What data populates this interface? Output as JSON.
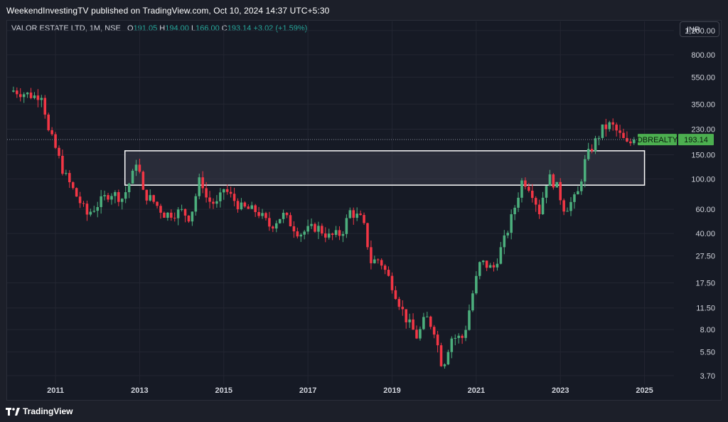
{
  "header": {
    "published_text": "WeekendInvestingTV published on TradingView.com, Oct 10, 2024 14:37 UTC+5:30"
  },
  "symbol": {
    "name": "VALOR ESTATE LTD, 1M, NSE",
    "open_label": "O",
    "open": "191.05",
    "high_label": "H",
    "high": "194.00",
    "low_label": "L",
    "low": "166.00",
    "close_label": "C",
    "close": "193.14",
    "change": "+3.02 (+1.59%)"
  },
  "currency_button": "INR",
  "footer": {
    "brand": "TradingView"
  },
  "colors": {
    "up": "#26a69a",
    "up_bright": "#4caf7d",
    "down": "#f23645",
    "background": "#161a25",
    "zone_fill": "#3a3d4a",
    "zone_border": "#ffffff"
  },
  "chart_data": {
    "type": "candlestick",
    "y_scale": "log",
    "ylim": [
      3.2,
      1400
    ],
    "xlim": [
      2009.85,
      2025.7
    ],
    "y_ticks": [
      "1,200.00",
      "800.00",
      "550.00",
      "350.00",
      "230.00",
      "150.00",
      "100.00",
      "60.00",
      "40.00",
      "27.50",
      "17.50",
      "11.50",
      "8.00",
      "5.50",
      "3.70"
    ],
    "x_ticks": [
      "2011",
      "2013",
      "2015",
      "2017",
      "2019",
      "2021",
      "2023",
      "2025"
    ],
    "last_price": 193.14,
    "price_label": {
      "symbol": "DBREALTY",
      "value": "193.14"
    },
    "zone": {
      "x_start": 2012.65,
      "x_end": 2025.0,
      "y_low": 90,
      "y_high": 160
    },
    "monthly_close_path": [
      [
        2010.0,
        440
      ],
      [
        2010.5,
        400
      ],
      [
        2010.7,
        420
      ],
      [
        2010.8,
        230
      ],
      [
        2010.95,
        185
      ],
      [
        2011.2,
        110
      ],
      [
        2011.5,
        75
      ],
      [
        2011.75,
        55
      ],
      [
        2012.0,
        65
      ],
      [
        2012.3,
        80
      ],
      [
        2012.6,
        72
      ],
      [
        2012.85,
        110
      ],
      [
        2012.95,
        150
      ],
      [
        2013.05,
        80
      ],
      [
        2013.3,
        70
      ],
      [
        2013.6,
        55
      ],
      [
        2014.0,
        58
      ],
      [
        2014.2,
        52
      ],
      [
        2014.45,
        105
      ],
      [
        2014.6,
        70
      ],
      [
        2014.85,
        65
      ],
      [
        2015.0,
        85
      ],
      [
        2015.4,
        62
      ],
      [
        2015.8,
        58
      ],
      [
        2016.1,
        45
      ],
      [
        2016.4,
        55
      ],
      [
        2016.8,
        40
      ],
      [
        2017.2,
        45
      ],
      [
        2017.5,
        38
      ],
      [
        2017.8,
        40
      ],
      [
        2018.0,
        58
      ],
      [
        2018.3,
        50
      ],
      [
        2018.5,
        25
      ],
      [
        2018.7,
        26
      ],
      [
        2019.0,
        17
      ],
      [
        2019.3,
        10
      ],
      [
        2019.6,
        7
      ],
      [
        2019.8,
        10
      ],
      [
        2020.0,
        8
      ],
      [
        2020.2,
        4.2
      ],
      [
        2020.4,
        7
      ],
      [
        2020.7,
        7
      ],
      [
        2020.9,
        14
      ],
      [
        2021.1,
        25
      ],
      [
        2021.4,
        22
      ],
      [
        2021.7,
        38
      ],
      [
        2021.9,
        60
      ],
      [
        2022.1,
        100
      ],
      [
        2022.3,
        85
      ],
      [
        2022.5,
        58
      ],
      [
        2022.7,
        105
      ],
      [
        2022.9,
        90
      ],
      [
        2023.1,
        60
      ],
      [
        2023.4,
        75
      ],
      [
        2023.6,
        140
      ],
      [
        2023.8,
        180
      ],
      [
        2024.0,
        230
      ],
      [
        2024.2,
        250
      ],
      [
        2024.4,
        210
      ],
      [
        2024.6,
        175
      ],
      [
        2024.75,
        193
      ]
    ]
  }
}
